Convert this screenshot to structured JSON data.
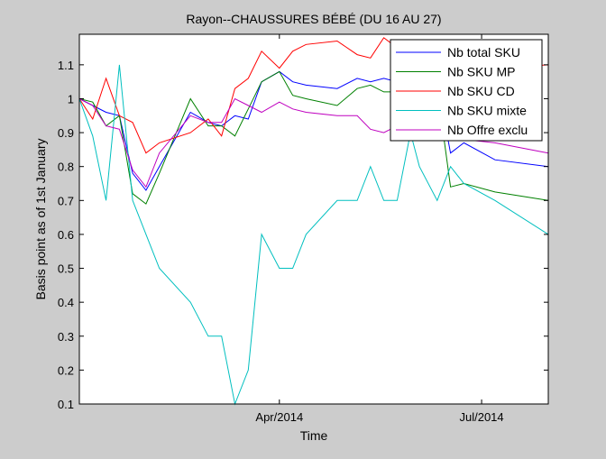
{
  "chart_data": {
    "type": "line",
    "title": "Rayon--CHAUSSURES BÉBÉ (DU 16 AU 27)",
    "xlabel": "Time",
    "ylabel": "Basis point as of 1st January",
    "x_ticks": [
      "Apr/2014",
      "Jul/2014"
    ],
    "x_tick_dates": [
      "2014-04-01",
      "2014-07-01"
    ],
    "x_range": [
      "2014-01-01",
      "2014-07-31"
    ],
    "y_ticks": [
      "0.1",
      "0.2",
      "0.3",
      "0.4",
      "0.5",
      "0.6",
      "0.7",
      "0.8",
      "0.9",
      "1",
      "1.1"
    ],
    "ylim": [
      0.1,
      1.19
    ],
    "grid": false,
    "legend_position": "top-right",
    "x": [
      "2014-01-01",
      "2014-01-07",
      "2014-01-13",
      "2014-01-19",
      "2014-01-25",
      "2014-01-31",
      "2014-02-06",
      "2014-02-20",
      "2014-02-28",
      "2014-03-06",
      "2014-03-12",
      "2014-03-18",
      "2014-03-24",
      "2014-04-01",
      "2014-04-07",
      "2014-04-13",
      "2014-04-27",
      "2014-05-06",
      "2014-05-12",
      "2014-05-18",
      "2014-05-24",
      "2014-05-30",
      "2014-06-03",
      "2014-06-11",
      "2014-06-17",
      "2014-06-23",
      "2014-07-07",
      "2014-07-31"
    ],
    "series": [
      {
        "name": "Nb total SKU",
        "color": "#0000ff",
        "values": [
          1.0,
          0.98,
          0.96,
          0.95,
          0.78,
          0.73,
          0.8,
          0.96,
          0.93,
          0.92,
          0.95,
          0.94,
          1.05,
          1.08,
          1.05,
          1.04,
          1.03,
          1.06,
          1.05,
          1.06,
          1.05,
          1.06,
          1.07,
          1.05,
          0.84,
          0.87,
          0.82,
          0.8
        ]
      },
      {
        "name": "Nb SKU MP",
        "color": "#008000",
        "values": [
          1.0,
          0.99,
          0.92,
          0.95,
          0.72,
          0.69,
          0.78,
          1.0,
          0.92,
          0.92,
          0.89,
          0.97,
          1.05,
          1.08,
          1.01,
          1.0,
          0.98,
          1.03,
          1.04,
          1.02,
          1.02,
          1.05,
          1.06,
          1.03,
          0.74,
          0.75,
          0.725,
          0.7
        ]
      },
      {
        "name": "Nb SKU CD",
        "color": "#ff0000",
        "values": [
          1.0,
          0.94,
          1.06,
          0.95,
          0.93,
          0.84,
          0.87,
          0.9,
          0.94,
          0.89,
          1.03,
          1.06,
          1.14,
          1.09,
          1.14,
          1.16,
          1.17,
          1.13,
          1.12,
          1.18,
          1.15,
          1.14,
          1.16,
          1.12,
          1.03,
          1.07,
          1.09,
          1.1
        ]
      },
      {
        "name": "Nb SKU mixte",
        "color": "#00bfbf",
        "values": [
          1.0,
          0.89,
          0.7,
          1.1,
          0.7,
          0.6,
          0.5,
          0.4,
          0.3,
          0.3,
          0.1,
          0.2,
          0.6,
          0.5,
          0.5,
          0.6,
          0.7,
          0.7,
          0.8,
          0.7,
          0.7,
          0.9,
          0.8,
          0.7,
          0.8,
          0.75,
          0.7,
          0.6
        ]
      },
      {
        "name": "Nb Offre exclu",
        "color": "#bf00bf",
        "values": [
          1.0,
          0.98,
          0.92,
          0.91,
          0.79,
          0.74,
          0.84,
          0.95,
          0.93,
          0.93,
          1.0,
          0.98,
          0.96,
          0.99,
          0.97,
          0.96,
          0.95,
          0.95,
          0.91,
          0.9,
          0.92,
          0.93,
          0.92,
          0.91,
          0.89,
          0.88,
          0.87,
          0.84
        ]
      }
    ]
  }
}
